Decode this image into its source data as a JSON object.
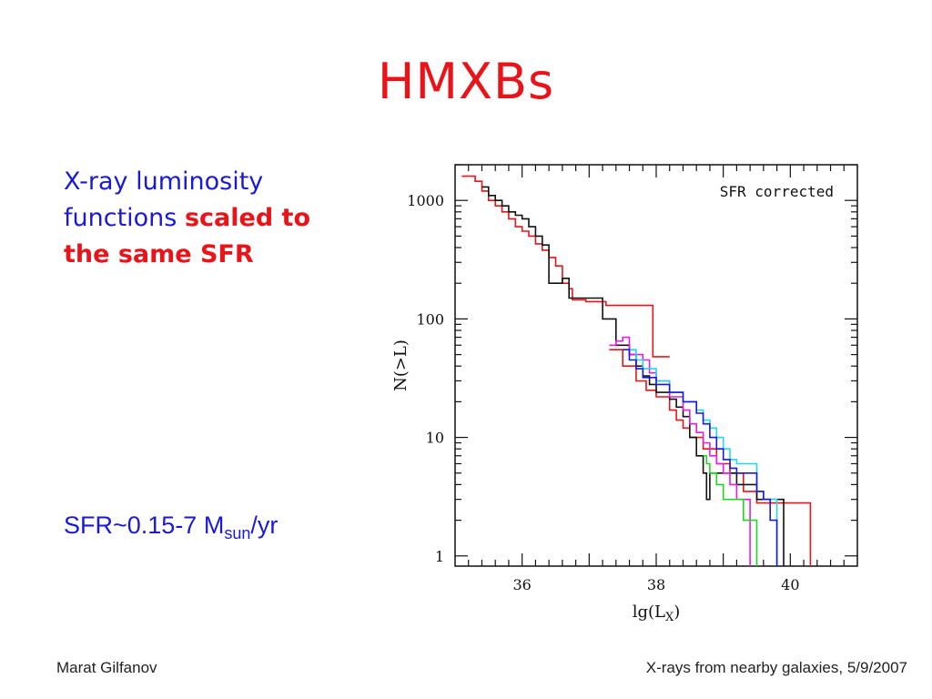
{
  "slide": {
    "title": "HMXBs",
    "desc_line1": "X-ray luminosity",
    "desc_line2a": "functions ",
    "desc_line2b": "scaled to",
    "desc_line3": "the same SFR",
    "sfr_main": "SFR~0.15-7 M",
    "sfr_sub": "sun",
    "sfr_tail": "/yr",
    "footer_left": "Marat Gilfanov",
    "footer_right": "X-rays from nearby galaxies, 5/9/2007"
  },
  "colors": {
    "red": "#e8141a",
    "green": "#22d522",
    "magenta": "#e21ee2",
    "cyan": "#22d8e8",
    "blue": "#1a1ad6",
    "black": "#111111"
  },
  "chart_data": {
    "type": "line",
    "xlabel_main": "lg(L",
    "xlabel_sub": "X",
    "xlabel_end": ")",
    "ylabel": "N(>L)",
    "annotation": "SFR corrected",
    "x_ticks": [
      "36",
      "38",
      "40"
    ],
    "y_ticks": [
      "1",
      "10",
      "100",
      "1000"
    ],
    "xlim": [
      35.0,
      41.0
    ],
    "ylim": [
      0.82,
      2000
    ],
    "yscale": "log",
    "series": [
      {
        "color": "red",
        "points": [
          [
            35.1,
            1600
          ],
          [
            35.3,
            1450
          ],
          [
            35.4,
            1200
          ],
          [
            35.5,
            1000
          ],
          [
            35.6,
            900
          ],
          [
            35.7,
            800
          ],
          [
            35.8,
            700
          ],
          [
            35.9,
            600
          ],
          [
            36.0,
            550
          ],
          [
            36.1,
            500
          ],
          [
            36.2,
            430
          ],
          [
            36.3,
            380
          ],
          [
            36.4,
            330
          ],
          [
            36.5,
            280
          ],
          [
            36.6,
            200
          ],
          [
            36.7,
            180
          ],
          [
            36.75,
            145
          ],
          [
            36.95,
            140
          ],
          [
            37.2,
            140
          ],
          [
            37.25,
            130
          ],
          [
            37.6,
            130
          ],
          [
            37.9,
            130
          ],
          [
            37.95,
            48
          ],
          [
            38.2,
            48
          ]
        ]
      },
      {
        "color": "red",
        "points": [
          [
            37.3,
            55
          ],
          [
            37.5,
            40
          ],
          [
            37.7,
            30
          ],
          [
            37.85,
            25
          ],
          [
            38.0,
            22
          ],
          [
            38.2,
            17
          ],
          [
            38.3,
            14
          ],
          [
            38.4,
            12
          ],
          [
            38.5,
            10
          ],
          [
            38.7,
            8
          ],
          [
            38.9,
            6
          ],
          [
            39.1,
            5
          ],
          [
            39.3,
            3.5
          ],
          [
            39.5,
            2.8
          ],
          [
            40.3,
            2.8
          ],
          [
            40.3,
            0.82
          ]
        ]
      },
      {
        "color": "black",
        "points": [
          [
            35.4,
            1300
          ],
          [
            35.5,
            1100
          ],
          [
            35.6,
            1000
          ],
          [
            35.7,
            900
          ],
          [
            35.8,
            800
          ],
          [
            35.9,
            750
          ],
          [
            36.0,
            700
          ],
          [
            36.1,
            600
          ],
          [
            36.2,
            500
          ],
          [
            36.3,
            420
          ],
          [
            36.4,
            350
          ],
          [
            36.4,
            200
          ],
          [
            36.55,
            200
          ],
          [
            36.6,
            220
          ],
          [
            36.7,
            150
          ],
          [
            37.2,
            150
          ],
          [
            37.2,
            100
          ],
          [
            37.4,
            100
          ],
          [
            37.4,
            60
          ],
          [
            37.6,
            50
          ],
          [
            37.7,
            40
          ],
          [
            37.8,
            33
          ],
          [
            37.9,
            28
          ],
          [
            38.0,
            24
          ],
          [
            38.2,
            21
          ],
          [
            38.3,
            18
          ],
          [
            38.4,
            15
          ],
          [
            38.5,
            10
          ],
          [
            38.6,
            7
          ],
          [
            38.7,
            5
          ],
          [
            38.75,
            3
          ],
          [
            38.8,
            5
          ],
          [
            39.1,
            5
          ],
          [
            39.2,
            4
          ],
          [
            39.4,
            4
          ],
          [
            39.5,
            3
          ],
          [
            39.7,
            3
          ],
          [
            39.9,
            2.4
          ],
          [
            39.9,
            0.82
          ]
        ]
      },
      {
        "color": "magenta",
        "points": [
          [
            37.3,
            60
          ],
          [
            37.4,
            65
          ],
          [
            37.5,
            70
          ],
          [
            37.6,
            50
          ],
          [
            37.8,
            45
          ],
          [
            37.9,
            35
          ],
          [
            38.0,
            30
          ],
          [
            38.2,
            22
          ],
          [
            38.4,
            17
          ],
          [
            38.5,
            13
          ],
          [
            38.6,
            11
          ],
          [
            38.7,
            9
          ],
          [
            38.8,
            7
          ],
          [
            38.9,
            6
          ],
          [
            39.0,
            5
          ],
          [
            39.1,
            4
          ],
          [
            39.2,
            3
          ],
          [
            39.4,
            3
          ],
          [
            39.4,
            0.82
          ]
        ]
      },
      {
        "color": "green",
        "points": [
          [
            38.7,
            7
          ],
          [
            38.75,
            6
          ],
          [
            38.8,
            5
          ],
          [
            38.9,
            4
          ],
          [
            39.0,
            3
          ],
          [
            39.3,
            3
          ],
          [
            39.3,
            2
          ],
          [
            39.5,
            2
          ],
          [
            39.5,
            0.82
          ]
        ]
      },
      {
        "color": "cyan",
        "points": [
          [
            37.6,
            55
          ],
          [
            37.7,
            45
          ],
          [
            37.8,
            38
          ],
          [
            38.0,
            30
          ],
          [
            38.2,
            24
          ],
          [
            38.4,
            20
          ],
          [
            38.6,
            17
          ],
          [
            38.7,
            14
          ],
          [
            38.8,
            12
          ],
          [
            38.9,
            10
          ],
          [
            39.0,
            8
          ],
          [
            39.1,
            6.5
          ],
          [
            39.2,
            6.0
          ],
          [
            39.4,
            6.0
          ],
          [
            39.5,
            3.5
          ],
          [
            39.6,
            3.0
          ],
          [
            39.8,
            3.0
          ],
          [
            39.8,
            0.82
          ]
        ]
      },
      {
        "color": "blue",
        "points": [
          [
            37.5,
            55
          ],
          [
            37.6,
            45
          ],
          [
            37.7,
            38
          ],
          [
            37.8,
            32
          ],
          [
            38.0,
            28
          ],
          [
            38.2,
            24
          ],
          [
            38.4,
            20
          ],
          [
            38.6,
            16
          ],
          [
            38.7,
            13
          ],
          [
            38.8,
            10
          ],
          [
            38.9,
            8
          ],
          [
            39.0,
            6.5
          ],
          [
            39.1,
            5.5
          ],
          [
            39.2,
            5
          ],
          [
            39.4,
            5
          ],
          [
            39.5,
            3.5
          ],
          [
            39.6,
            3
          ],
          [
            39.7,
            2
          ],
          [
            39.8,
            1
          ],
          [
            39.8,
            0.82
          ]
        ]
      }
    ]
  }
}
